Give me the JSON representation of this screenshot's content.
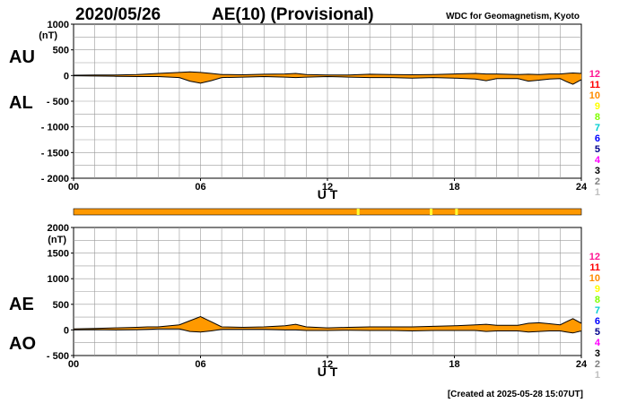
{
  "header": {
    "date": "2020/05/26",
    "title": "AE(10) (Provisional)",
    "source": "WDC for Geomagnetism, Kyoto"
  },
  "footer": {
    "created": "[Created at 2025-05-28 15:07UT]"
  },
  "station_count_legend": {
    "labels": [
      "12",
      "11",
      "10",
      "9",
      "8",
      "7",
      "6",
      "5",
      "4",
      "3",
      "2",
      "1"
    ],
    "colors": [
      "#ff1493",
      "#ff0000",
      "#ff8c00",
      "#ffff00",
      "#7fff00",
      "#00ced1",
      "#0000ff",
      "#00008b",
      "#ff00ff",
      "#000000",
      "#808080",
      "#c0c0c0"
    ]
  },
  "station_bar": {
    "base_color": "#ff9900",
    "marks": [
      {
        "hour": 13.45,
        "color": "#ffff33"
      },
      {
        "hour": 16.9,
        "color": "#ffff33"
      },
      {
        "hour": 18.1,
        "color": "#ffff33"
      }
    ]
  },
  "chart_data": [
    {
      "type": "area",
      "panel": "AU/AL",
      "series_labels": [
        "AU",
        "AL"
      ],
      "yunit": "(nT)",
      "xlabel": "U T",
      "xlim": [
        0,
        24
      ],
      "ylim": [
        -2000,
        1000
      ],
      "xticks": [
        "00",
        "06",
        "12",
        "18",
        "24"
      ],
      "yticks": [
        {
          "value": 1000,
          "label": "1000"
        },
        {
          "value": 500,
          "label": "500"
        },
        {
          "value": 0,
          "label": "0"
        },
        {
          "value": -500,
          "label": "- 500"
        },
        {
          "value": -1000,
          "label": "- 1000"
        },
        {
          "value": -1500,
          "label": "- 1500"
        },
        {
          "value": -2000,
          "label": "- 2000"
        }
      ],
      "fill_color": "#ff9900",
      "grid": true,
      "x": [
        0,
        1,
        2,
        3,
        4,
        5,
        5.5,
        6,
        6.5,
        7,
        8,
        9,
        10,
        10.5,
        11,
        12,
        13,
        14,
        15,
        16,
        17,
        18,
        19,
        19.5,
        20,
        21,
        21.5,
        22,
        22.5,
        23,
        23.3,
        23.6,
        24
      ],
      "upper": [
        5,
        10,
        10,
        20,
        40,
        60,
        70,
        60,
        40,
        20,
        15,
        25,
        30,
        40,
        20,
        10,
        10,
        25,
        20,
        15,
        20,
        30,
        40,
        30,
        30,
        20,
        25,
        20,
        30,
        30,
        40,
        50,
        40
      ],
      "lower": [
        -5,
        -10,
        -15,
        -20,
        -20,
        -40,
        -110,
        -150,
        -100,
        -40,
        -30,
        -20,
        -30,
        -40,
        -30,
        -20,
        -30,
        -40,
        -40,
        -50,
        -40,
        -50,
        -70,
        -100,
        -60,
        -60,
        -110,
        -90,
        -70,
        -60,
        -120,
        -170,
        -80
      ]
    },
    {
      "type": "area",
      "panel": "AE/AO",
      "series_labels": [
        "AE",
        "AO"
      ],
      "yunit": "(nT)",
      "xlabel": "U T",
      "xlim": [
        0,
        24
      ],
      "ylim": [
        -500,
        2000
      ],
      "xticks": [
        "00",
        "06",
        "12",
        "18",
        "24"
      ],
      "yticks": [
        {
          "value": 2000,
          "label": "2000"
        },
        {
          "value": 1500,
          "label": "1500"
        },
        {
          "value": 1000,
          "label": "1000"
        },
        {
          "value": 500,
          "label": "500"
        },
        {
          "value": 0,
          "label": "0"
        },
        {
          "value": -500,
          "label": "- 500"
        }
      ],
      "fill_color": "#ff9900",
      "grid": true,
      "x": [
        0,
        1,
        2,
        3,
        3.5,
        4,
        5,
        5.5,
        6,
        6.5,
        7,
        8,
        9,
        10,
        10.5,
        11,
        12,
        13,
        14,
        15,
        16,
        17,
        18,
        19,
        19.5,
        20,
        21,
        21.5,
        22,
        22.5,
        23,
        23.3,
        23.6,
        24
      ],
      "upper": [
        20,
        30,
        40,
        50,
        60,
        60,
        100,
        180,
        260,
        160,
        60,
        50,
        60,
        80,
        110,
        60,
        40,
        50,
        60,
        60,
        60,
        70,
        80,
        100,
        110,
        90,
        90,
        130,
        140,
        120,
        100,
        160,
        220,
        130
      ],
      "lower": [
        0,
        5,
        0,
        5,
        10,
        20,
        20,
        -30,
        -40,
        -20,
        10,
        10,
        10,
        0,
        0,
        -10,
        -10,
        -5,
        -10,
        -10,
        -20,
        -10,
        -10,
        -10,
        -30,
        -20,
        -20,
        -40,
        -30,
        -20,
        -20,
        -40,
        -60,
        -20
      ]
    }
  ]
}
